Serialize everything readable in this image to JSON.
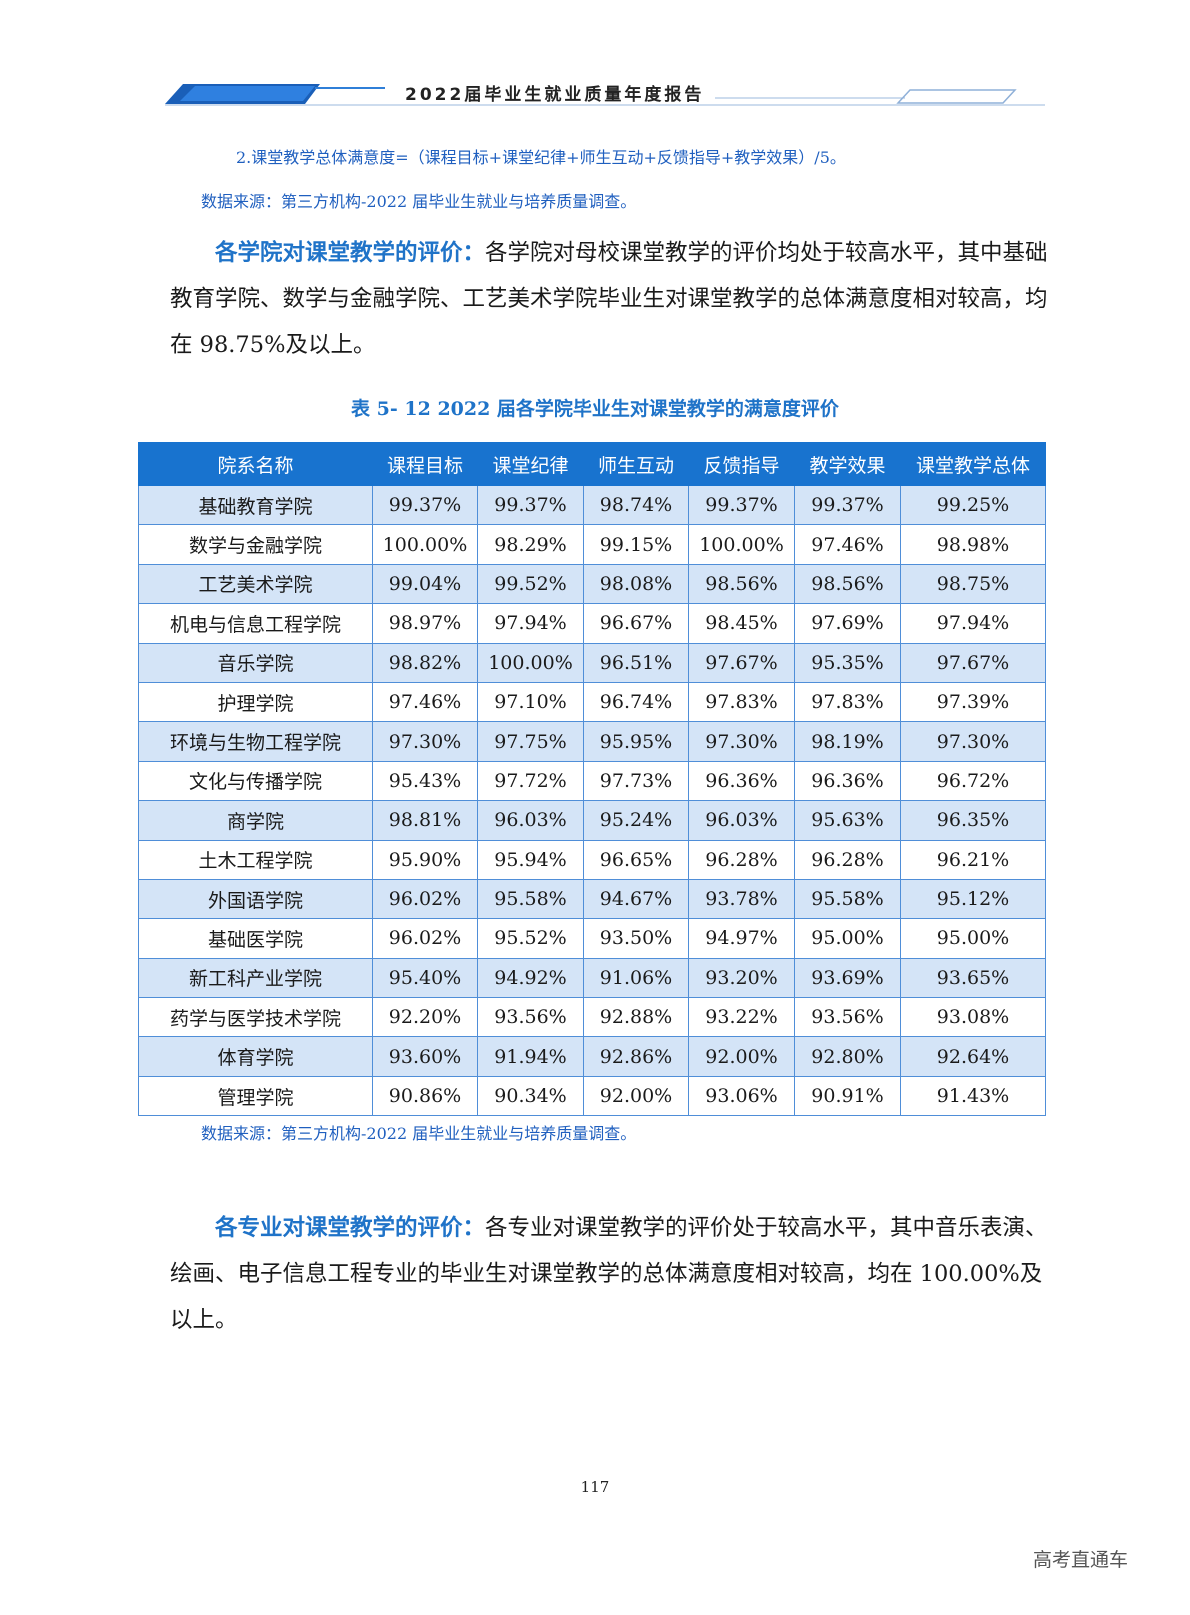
{
  "header": {
    "title": "2022届毕业生就业质量年度报告"
  },
  "notes": {
    "formula": "2.课堂教学总体满意度=（课程目标+课堂纪律+师生互动+反馈指导+教学效果）/5。",
    "source_top": "数据来源：第三方机构-2022 届毕业生就业与培养质量调查。",
    "source_table": "数据来源：第三方机构-2022 届毕业生就业与培养质量调查。"
  },
  "para1": {
    "lead": "各学院对课堂教学的评价：",
    "text": "各学院对母校课堂教学的评价均处于较高水平，其中基础教育学院、数学与金融学院、工艺美术学院毕业生对课堂教学的总体满意度相对较高，均在 98.75%及以上。"
  },
  "table": {
    "caption": "表 5- 12    2022 届各学院毕业生对课堂教学的满意度评价",
    "headers": [
      "院系名称",
      "课程目标",
      "课堂纪律",
      "师生互动",
      "反馈指导",
      "教学效果",
      "课堂教学总体"
    ],
    "rows": [
      [
        "基础教育学院",
        "99.37%",
        "99.37%",
        "98.74%",
        "99.37%",
        "99.37%",
        "99.25%"
      ],
      [
        "数学与金融学院",
        "100.00%",
        "98.29%",
        "99.15%",
        "100.00%",
        "97.46%",
        "98.98%"
      ],
      [
        "工艺美术学院",
        "99.04%",
        "99.52%",
        "98.08%",
        "98.56%",
        "98.56%",
        "98.75%"
      ],
      [
        "机电与信息工程学院",
        "98.97%",
        "97.94%",
        "96.67%",
        "98.45%",
        "97.69%",
        "97.94%"
      ],
      [
        "音乐学院",
        "98.82%",
        "100.00%",
        "96.51%",
        "97.67%",
        "95.35%",
        "97.67%"
      ],
      [
        "护理学院",
        "97.46%",
        "97.10%",
        "96.74%",
        "97.83%",
        "97.83%",
        "97.39%"
      ],
      [
        "环境与生物工程学院",
        "97.30%",
        "97.75%",
        "95.95%",
        "97.30%",
        "98.19%",
        "97.30%"
      ],
      [
        "文化与传播学院",
        "95.43%",
        "97.72%",
        "97.73%",
        "96.36%",
        "96.36%",
        "96.72%"
      ],
      [
        "商学院",
        "98.81%",
        "96.03%",
        "95.24%",
        "96.03%",
        "95.63%",
        "96.35%"
      ],
      [
        "土木工程学院",
        "95.90%",
        "95.94%",
        "96.65%",
        "96.28%",
        "96.28%",
        "96.21%"
      ],
      [
        "外国语学院",
        "96.02%",
        "95.58%",
        "94.67%",
        "93.78%",
        "95.58%",
        "95.12%"
      ],
      [
        "基础医学院",
        "96.02%",
        "95.52%",
        "93.50%",
        "94.97%",
        "95.00%",
        "95.00%"
      ],
      [
        "新工科产业学院",
        "95.40%",
        "94.92%",
        "91.06%",
        "93.20%",
        "93.69%",
        "93.65%"
      ],
      [
        "药学与医学技术学院",
        "92.20%",
        "93.56%",
        "92.88%",
        "93.22%",
        "93.56%",
        "93.08%"
      ],
      [
        "体育学院",
        "93.60%",
        "91.94%",
        "92.86%",
        "92.00%",
        "92.80%",
        "92.64%"
      ],
      [
        "管理学院",
        "90.86%",
        "90.34%",
        "92.00%",
        "93.06%",
        "90.91%",
        "91.43%"
      ]
    ]
  },
  "para2": {
    "lead": "各专业对课堂教学的评价：",
    "text": "各专业对课堂教学的评价处于较高水平，其中音乐表演、绘画、电子信息工程专业的毕业生对课堂教学的总体满意度相对较高，均在 100.00%及以上。"
  },
  "page_number": "117",
  "watermark": "高考直通车",
  "colors": {
    "accent": "#1f73c8",
    "table_header": "#1873cf",
    "row_alt": "#d4e4f7"
  }
}
